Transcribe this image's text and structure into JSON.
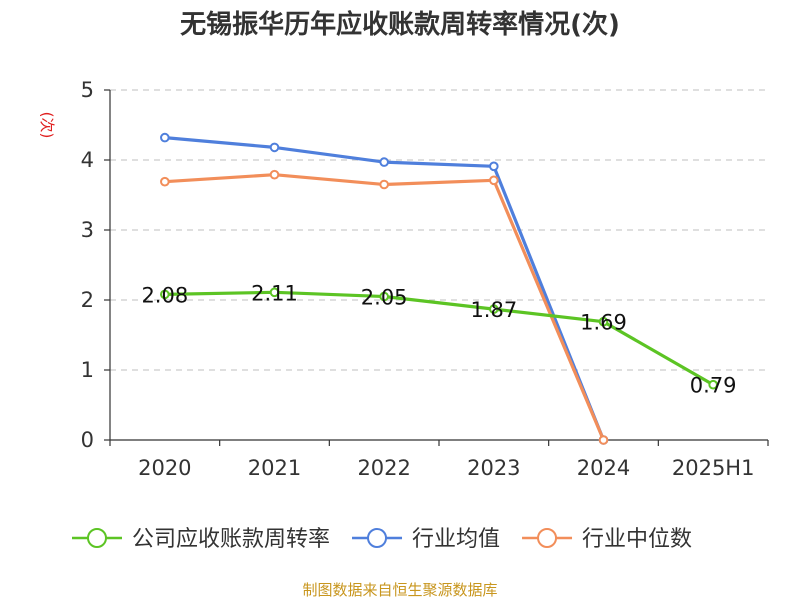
{
  "chart_data": {
    "type": "line",
    "title": "无锡振华历年应收账款周转率情况(次)",
    "ylabel": "(次)",
    "xlabel": "",
    "categories": [
      "2020",
      "2021",
      "2022",
      "2023",
      "2024",
      "2025H1"
    ],
    "ylim": [
      0,
      5
    ],
    "yticks": [
      "0",
      "1",
      "2",
      "3",
      "4",
      "5"
    ],
    "grid": true,
    "legend_position": "bottom",
    "series": [
      {
        "name": "公司应收账款周转率",
        "color": "#5cc424",
        "values": [
          2.08,
          2.11,
          2.05,
          1.87,
          1.69,
          0.79
        ],
        "labels": [
          "2.08",
          "2.11",
          "2.05",
          "1.87",
          "1.69",
          "0.79"
        ]
      },
      {
        "name": "行业均值",
        "color": "#4f7fdc",
        "values": [
          4.32,
          4.18,
          3.97,
          3.91,
          0,
          null
        ]
      },
      {
        "name": "行业中位数",
        "color": "#f28e5a",
        "values": [
          3.69,
          3.79,
          3.65,
          3.71,
          0,
          null
        ]
      }
    ],
    "source": "制图数据来自恒生聚源数据库"
  }
}
